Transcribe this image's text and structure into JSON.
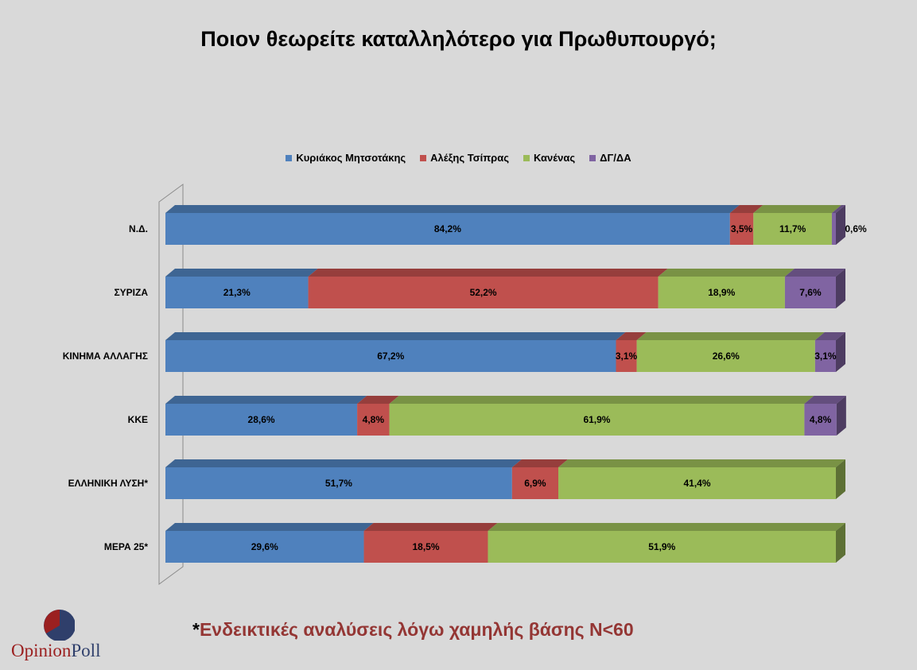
{
  "chart_data": {
    "type": "bar",
    "orientation": "horizontal",
    "stacked": true,
    "percent_stacked": true,
    "title": "Ποιον θεωρείτε καταλληλότερο για Πρωθυπουργό;",
    "categories": [
      "Ν.Δ.",
      "ΣΥΡΙΖΑ",
      "ΚΙΝΗΜΑ ΑΛΛΑΓΗΣ",
      "ΚΚΕ",
      "ΕΛΛΗΝΙΚΗ ΛΥΣΗ*",
      "ΜΕΡΑ 25*"
    ],
    "series": [
      {
        "name": "Κυριάκος Μητσοτάκης",
        "color": "#4f81bd",
        "values": [
          84.2,
          21.3,
          67.2,
          28.6,
          51.7,
          29.6
        ],
        "labels": [
          "84,2%",
          "21,3%",
          "67,2%",
          "28,6%",
          "51,7%",
          "29,6%"
        ]
      },
      {
        "name": "Αλέξης Τσίπρας",
        "color": "#c0504d",
        "values": [
          3.5,
          52.2,
          3.1,
          4.8,
          6.9,
          18.5
        ],
        "labels": [
          "3,5%",
          "52,2%",
          "3,1%",
          "4,8%",
          "6,9%",
          "18,5%"
        ]
      },
      {
        "name": "Κανένας",
        "color": "#9bbb59",
        "values": [
          11.7,
          18.9,
          26.6,
          61.9,
          41.4,
          51.9
        ],
        "labels": [
          "11,7%",
          "18,9%",
          "26,6%",
          "61,9%",
          "41,4%",
          "51,9%"
        ]
      },
      {
        "name": "ΔΓ/ΔΑ",
        "color": "#8064a2",
        "values": [
          0.6,
          7.6,
          3.1,
          4.8,
          0,
          0
        ],
        "labels": [
          "0,6%",
          "7,6%",
          "3,1%",
          "4,8%",
          "",
          ""
        ]
      }
    ],
    "legend_position": "top",
    "grid": false,
    "three_d": true
  },
  "footnote": {
    "star": "*",
    "text": "Ενδεικτικές αναλύσεις λόγω χαμηλής βάσης Ν<60"
  },
  "logo": {
    "word1": "Opinion",
    "word2": "Poll",
    "colors": {
      "red": "#9b2020",
      "navy": "#2f3f6b"
    }
  }
}
